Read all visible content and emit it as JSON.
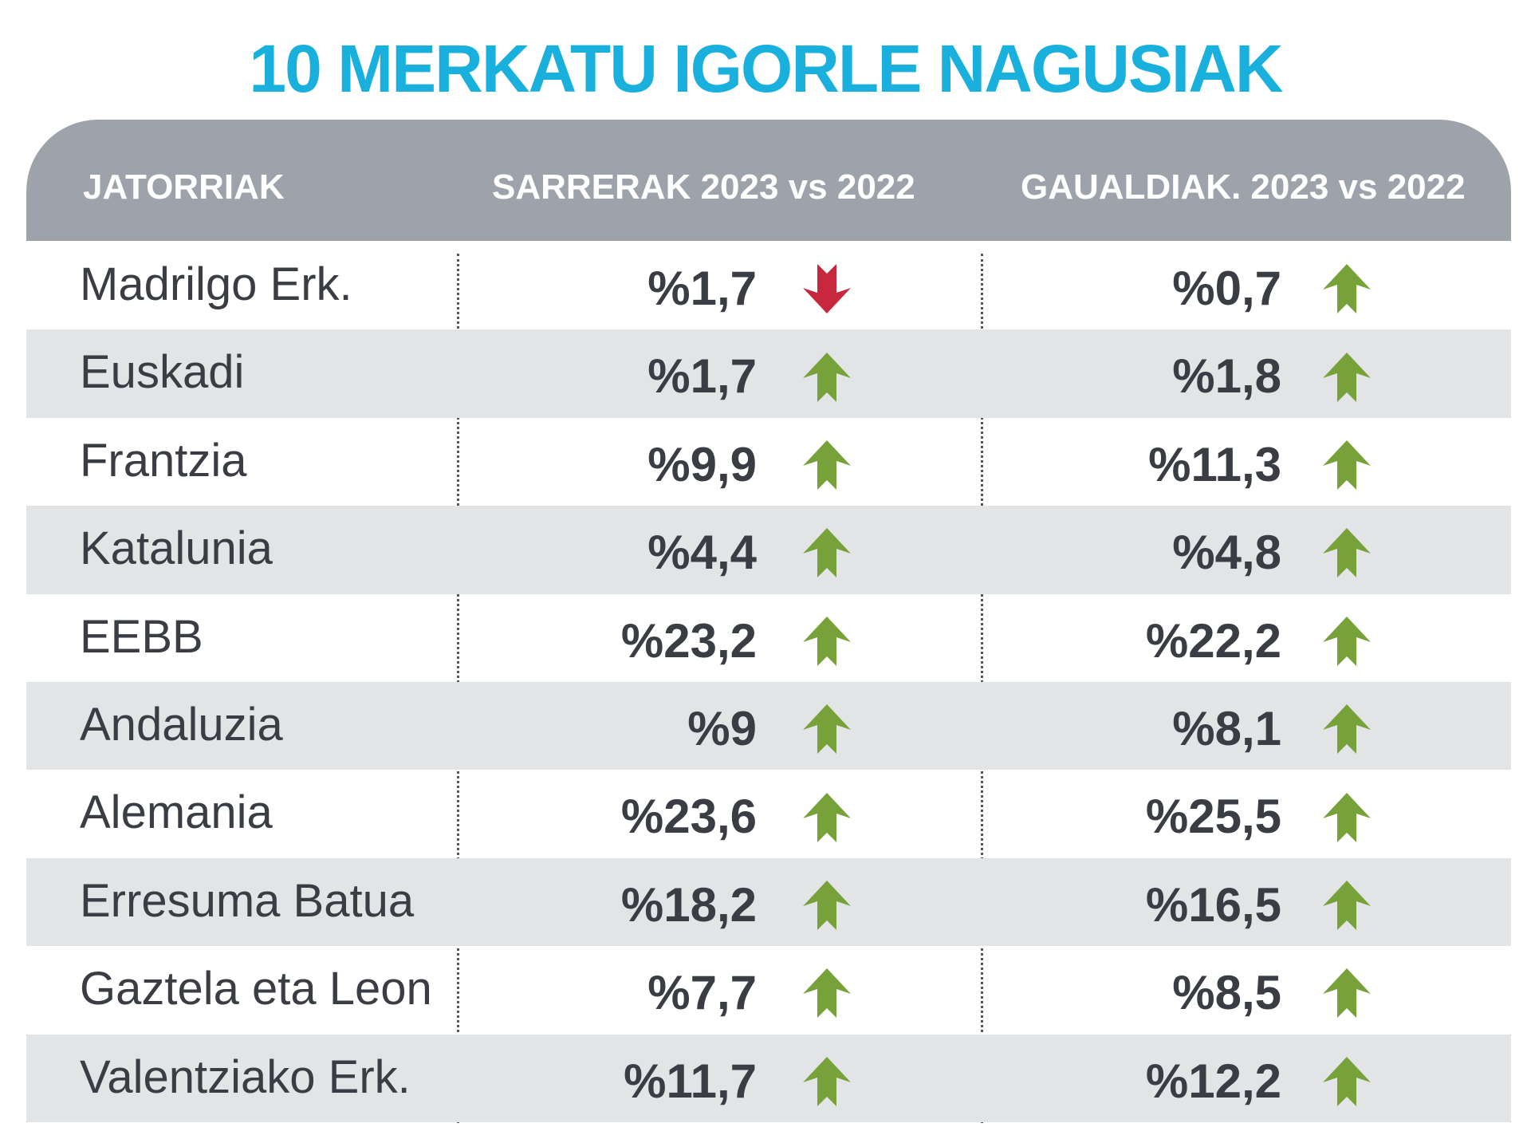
{
  "title": "10 MERKATU IGORLE NAGUSIAK",
  "table": {
    "headers": [
      "JATORRIAK",
      "SARRERAK 2023 vs 2022",
      "GAUALDIAK. 2023 vs 2022"
    ],
    "rows": [
      {
        "origin": "Madrilgo Erk.",
        "entries": "%1,7",
        "entries_trend": "down",
        "nights": "%0,7",
        "nights_trend": "up"
      },
      {
        "origin": "Euskadi",
        "entries": "%1,7",
        "entries_trend": "up",
        "nights": "%1,8",
        "nights_trend": "up"
      },
      {
        "origin": "Frantzia",
        "entries": "%9,9",
        "entries_trend": "up",
        "nights": "%11,3",
        "nights_trend": "up"
      },
      {
        "origin": "Katalunia",
        "entries": "%4,4",
        "entries_trend": "up",
        "nights": "%4,8",
        "nights_trend": "up"
      },
      {
        "origin": "EEBB",
        "entries": "%23,2",
        "entries_trend": "up",
        "nights": "%22,2",
        "nights_trend": "up"
      },
      {
        "origin": "Andaluzia",
        "entries": "%9",
        "entries_trend": "up",
        "nights": "%8,1",
        "nights_trend": "up"
      },
      {
        "origin": "Alemania",
        "entries": "%23,6",
        "entries_trend": "up",
        "nights": "%25,5",
        "nights_trend": "up"
      },
      {
        "origin": "Erresuma Batua",
        "entries": "%18,2",
        "entries_trend": "up",
        "nights": "%16,5",
        "nights_trend": "up"
      },
      {
        "origin": "Gaztela eta Leon",
        "entries": "%7,7",
        "entries_trend": "up",
        "nights": "%8,5",
        "nights_trend": "up"
      },
      {
        "origin": "Valentziako Erk.",
        "entries": "%11,7",
        "entries_trend": "up",
        "nights": "%12,2",
        "nights_trend": "up"
      }
    ]
  }
}
